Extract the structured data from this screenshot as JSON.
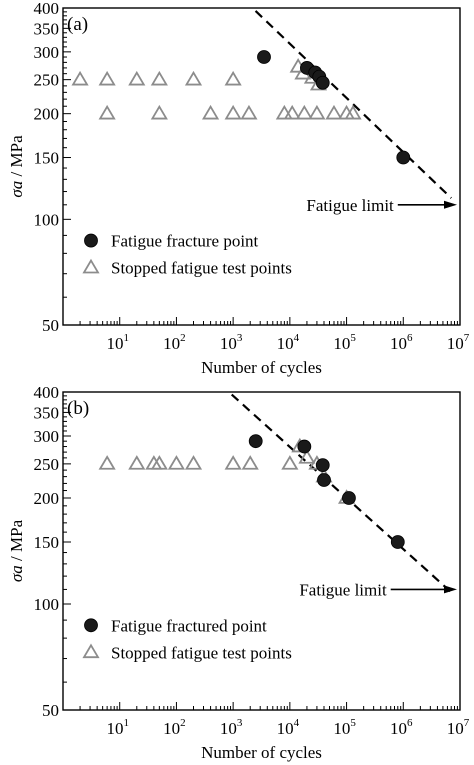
{
  "chart_data": [
    {
      "type": "scatter",
      "panel_label": "(a)",
      "xlabel": "Number of cycles",
      "ylabel": "σa / MPa",
      "xscale": "log",
      "yscale": "log",
      "xlim": [
        1,
        10000000
      ],
      "ylim": [
        50,
        400
      ],
      "x_ticks": [
        {
          "base": "10",
          "exp": "1",
          "value": 10
        },
        {
          "base": "10",
          "exp": "2",
          "value": 100
        },
        {
          "base": "10",
          "exp": "3",
          "value": 1000
        },
        {
          "base": "10",
          "exp": "4",
          "value": 10000
        },
        {
          "base": "10",
          "exp": "5",
          "value": 100000
        },
        {
          "base": "10",
          "exp": "6",
          "value": 1000000
        },
        {
          "base": "10",
          "exp": "7",
          "value": 10000000
        }
      ],
      "y_ticks": [
        {
          "label": "50",
          "value": 50
        },
        {
          "label": "100",
          "value": 100
        },
        {
          "label": "150",
          "value": 150
        },
        {
          "label": "200",
          "value": 200
        },
        {
          "label": "250",
          "value": 250
        },
        {
          "label": "300",
          "value": 300
        },
        {
          "label": "350",
          "value": 350
        },
        {
          "label": "400",
          "value": 400
        }
      ],
      "legend_position": "lower-left",
      "series": [
        {
          "name": "Fatigue fracture point",
          "marker": "filled-circle",
          "color": "#1a1a1a",
          "points": [
            [
              3500,
              290
            ],
            [
              20000,
              270
            ],
            [
              28000,
              262
            ],
            [
              33000,
              255
            ],
            [
              38000,
              245
            ],
            [
              1000000,
              150
            ]
          ]
        },
        {
          "name": "Stopped fatigue test points",
          "marker": "open-triangle",
          "color": "#8c8c8c",
          "points": [
            [
              2,
              250
            ],
            [
              6,
              250
            ],
            [
              20,
              250
            ],
            [
              50,
              250
            ],
            [
              200,
              250
            ],
            [
              1000,
              250
            ],
            [
              6,
              200
            ],
            [
              50,
              200
            ],
            [
              400,
              200
            ],
            [
              1000,
              200
            ],
            [
              1900,
              200
            ],
            [
              8000,
              200
            ],
            [
              11000,
              200
            ],
            [
              18000,
              200
            ],
            [
              30000,
              200
            ],
            [
              60000,
              200
            ],
            [
              100000,
              200
            ],
            [
              130000,
              200
            ],
            [
              14000,
              272
            ],
            [
              17000,
              260
            ],
            [
              25000,
              253
            ],
            [
              32000,
              242
            ]
          ]
        }
      ],
      "fit_line": {
        "style": "dashed",
        "from": [
          1600,
          420
        ],
        "to": [
          7000000,
          115
        ]
      },
      "annotation": {
        "text": "Fatigue limit",
        "arrow_from_x": 800000,
        "arrow_to_x": 10000000,
        "y": 110
      }
    },
    {
      "type": "scatter",
      "panel_label": "(b)",
      "xlabel": "Number of cycles",
      "ylabel": "σa / MPa",
      "xscale": "log",
      "yscale": "log",
      "xlim": [
        1,
        10000000
      ],
      "ylim": [
        50,
        400
      ],
      "x_ticks": [
        {
          "base": "10",
          "exp": "1",
          "value": 10
        },
        {
          "base": "10",
          "exp": "2",
          "value": 100
        },
        {
          "base": "10",
          "exp": "3",
          "value": 1000
        },
        {
          "base": "10",
          "exp": "4",
          "value": 10000
        },
        {
          "base": "10",
          "exp": "5",
          "value": 100000
        },
        {
          "base": "10",
          "exp": "6",
          "value": 1000000
        },
        {
          "base": "10",
          "exp": "7",
          "value": 10000000
        }
      ],
      "y_ticks": [
        {
          "label": "50",
          "value": 50
        },
        {
          "label": "100",
          "value": 100
        },
        {
          "label": "150",
          "value": 150
        },
        {
          "label": "200",
          "value": 200
        },
        {
          "label": "250",
          "value": 250
        },
        {
          "label": "300",
          "value": 300
        },
        {
          "label": "350",
          "value": 350
        },
        {
          "label": "400",
          "value": 400
        }
      ],
      "legend_position": "lower-left",
      "series": [
        {
          "name": "Fatigue fractured point",
          "marker": "filled-circle",
          "color": "#1a1a1a",
          "points": [
            [
              2500,
              290
            ],
            [
              18000,
              280
            ],
            [
              38000,
              248
            ],
            [
              40000,
              225
            ],
            [
              110000,
              200
            ],
            [
              800000,
              150
            ]
          ]
        },
        {
          "name": "Stopped fatigue test points",
          "marker": "open-triangle",
          "color": "#8c8c8c",
          "points": [
            [
              6,
              250
            ],
            [
              20,
              250
            ],
            [
              40,
              250
            ],
            [
              50,
              250
            ],
            [
              100,
              250
            ],
            [
              200,
              250
            ],
            [
              1000,
              250
            ],
            [
              2000,
              250
            ],
            [
              10000,
              250
            ],
            [
              15000,
              280
            ],
            [
              20000,
              260
            ],
            [
              30000,
              250
            ],
            [
              40000,
              230
            ],
            [
              100000,
              200
            ]
          ]
        }
      ],
      "fit_line": {
        "style": "dashed",
        "from": [
          600,
          420
        ],
        "to": [
          7000000,
          108
        ]
      },
      "annotation": {
        "text": "Fatigue limit",
        "arrow_from_x": 600000,
        "arrow_to_x": 10000000,
        "y": 110
      }
    }
  ]
}
